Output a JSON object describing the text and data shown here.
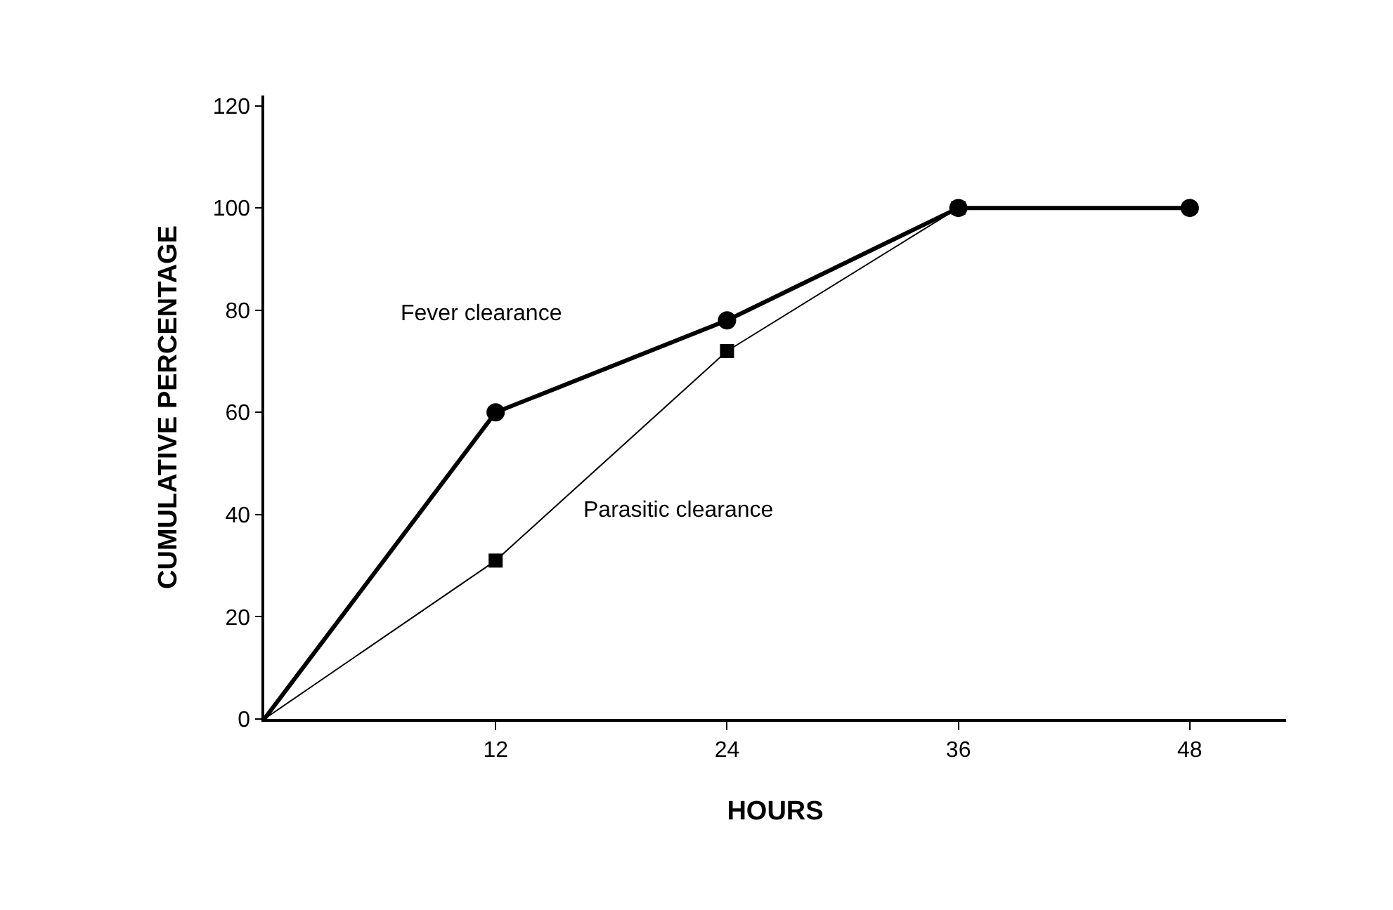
{
  "chart_data": {
    "type": "line",
    "xlabel": "HOURS",
    "ylabel": "CUMULATIVE PERCENTAGE",
    "x": [
      0,
      12,
      24,
      36,
      48
    ],
    "series": [
      {
        "name": "Fever clearance",
        "color": "#000000",
        "marker": "circle",
        "values": [
          0,
          60,
          78,
          100,
          100
        ]
      },
      {
        "name": "Parasitic clearance",
        "color": "#000000",
        "marker": "square",
        "x": [
          0,
          12,
          24,
          36
        ],
        "values": [
          0,
          31,
          72,
          100
        ]
      }
    ],
    "xlim": [
      0,
      53
    ],
    "xticks": [
      12,
      24,
      36,
      48
    ],
    "ylim": [
      0,
      122
    ],
    "yticks": [
      0,
      20,
      40,
      60,
      80,
      100,
      120
    ],
    "legend": false,
    "line_style": "solid"
  }
}
